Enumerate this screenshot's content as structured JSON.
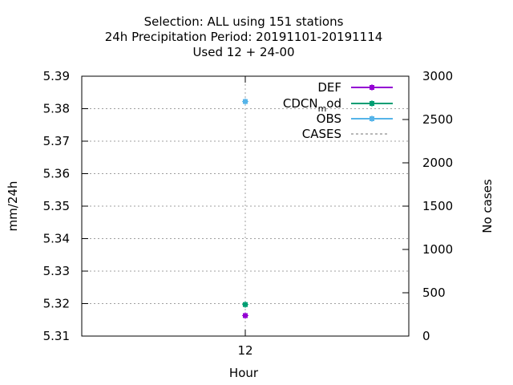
{
  "chart_data": {
    "type": "scatter",
    "title_lines": [
      "Selection: ALL using   151 stations",
      "24h Precipitation    Period: 20191101-20191114",
      "Used  12 + 24-00"
    ],
    "xlabel": "Hour",
    "ylabel": "mm/24h",
    "y2label": "No cases",
    "x_ticks": [
      12
    ],
    "x_tick_labels": [
      "12"
    ],
    "ylim": [
      5.31,
      5.39
    ],
    "y_ticks": [
      5.31,
      5.32,
      5.33,
      5.34,
      5.35,
      5.36,
      5.37,
      5.38,
      5.39
    ],
    "y_tick_labels": [
      "5.31",
      "5.32",
      "5.33",
      "5.34",
      "5.35",
      "5.36",
      "5.37",
      "5.38",
      "5.39"
    ],
    "y2lim": [
      0,
      3000
    ],
    "y2_ticks": [
      0,
      500,
      1000,
      1500,
      2000,
      2500,
      3000
    ],
    "y2_tick_labels": [
      "0",
      "500",
      "1000",
      "1500",
      "2000",
      "2500",
      "3000"
    ],
    "grid": true,
    "legend_position": "top-right",
    "series": [
      {
        "name": "DEF",
        "axis": "y",
        "color": "#9400d3",
        "style": "line-points",
        "x": [
          12
        ],
        "y": [
          5.3163
        ]
      },
      {
        "name": "CDCN_mod",
        "legend_label": "CDCN",
        "legend_sub": "m",
        "legend_tail": "od",
        "axis": "y",
        "color": "#009e73",
        "style": "line-points",
        "x": [
          12
        ],
        "y": [
          5.3197
        ]
      },
      {
        "name": "OBS",
        "axis": "y",
        "color": "#56b4e9",
        "style": "line-points",
        "x": [
          12
        ],
        "y": [
          5.3822
        ]
      },
      {
        "name": "CASES",
        "axis": "y2",
        "color": "#a0a0a0",
        "style": "dashed",
        "x": [
          12
        ],
        "y": [
          151
        ]
      }
    ]
  }
}
